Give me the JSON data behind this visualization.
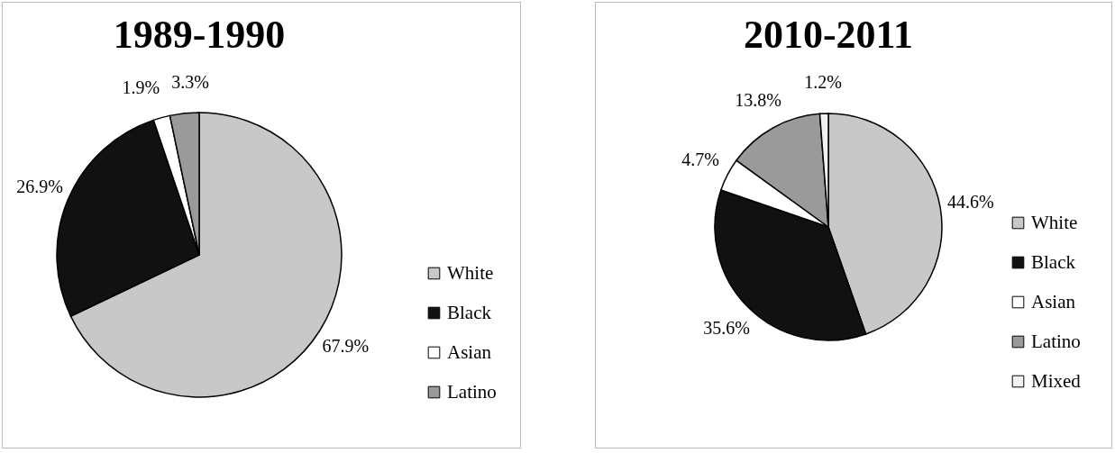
{
  "chart_data": [
    {
      "type": "pie",
      "title": "1989-1990",
      "categories": [
        "White",
        "Black",
        "Asian",
        "Latino"
      ],
      "values": [
        67.9,
        26.9,
        1.9,
        3.3
      ],
      "value_labels": [
        "67.9%",
        "26.9%",
        "1.9%",
        "3.3%"
      ],
      "colors": [
        "#c8c8c8",
        "#111111",
        "#ffffff",
        "#9a9a9a"
      ],
      "legend": "right"
    },
    {
      "type": "pie",
      "title": "2010-2011",
      "categories": [
        "White",
        "Black",
        "Asian",
        "Latino",
        "Mixed"
      ],
      "values": [
        44.6,
        35.6,
        4.7,
        13.8,
        1.2
      ],
      "value_labels": [
        "44.6%",
        "35.6%",
        "4.7%",
        "13.8%",
        "1.2%"
      ],
      "colors": [
        "#c8c8c8",
        "#111111",
        "#ffffff",
        "#9a9a9a",
        "#f2f2f2"
      ],
      "legend": "right"
    }
  ]
}
